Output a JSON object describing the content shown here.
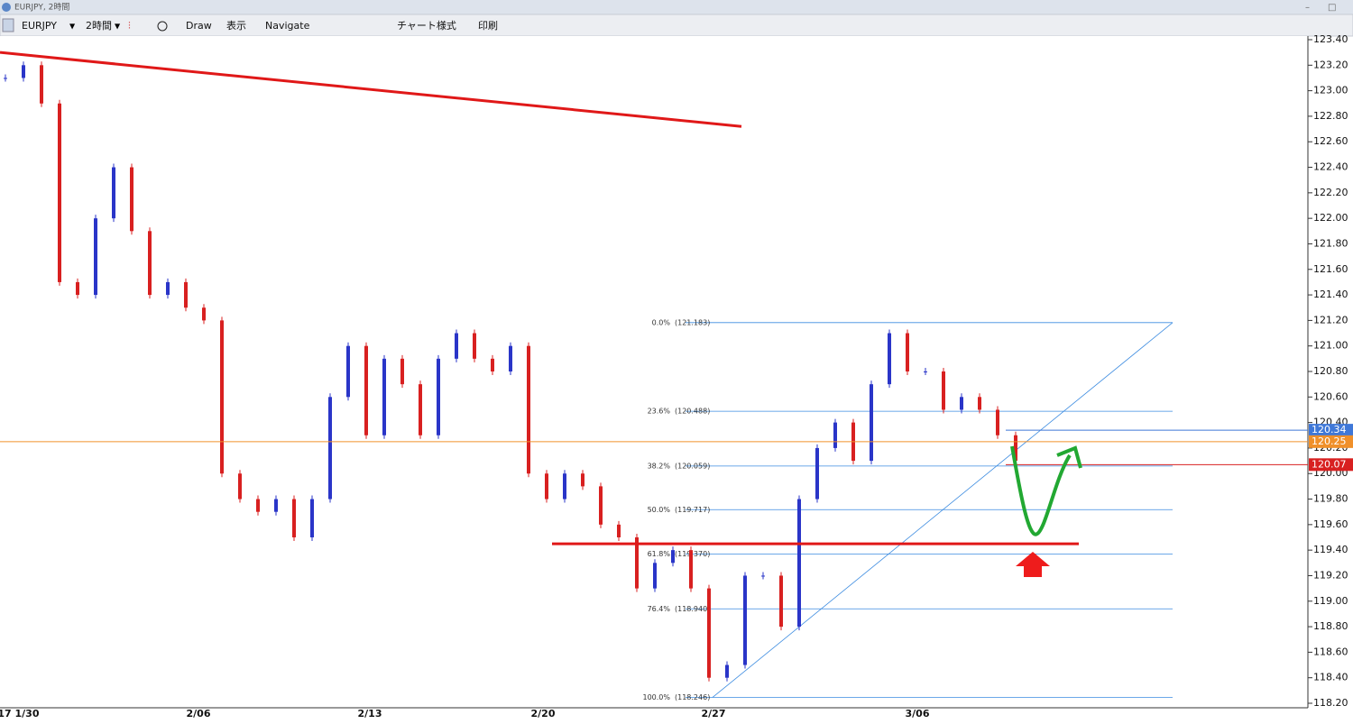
{
  "window": {
    "title": "EURJPY, 2時間"
  },
  "toolbar": {
    "symbol": "EURJPY",
    "timeframe": "2時間",
    "items": [
      "Draw",
      "表示",
      "Navigate",
      "チャート様式",
      "印刷"
    ]
  },
  "chart_data": {
    "type": "candlestick",
    "closes": [
      123.1,
      123.2,
      122.9,
      121.5,
      121.4,
      122.0,
      122.4,
      121.9,
      121.4,
      121.5,
      121.3,
      121.2,
      120.0,
      119.8,
      119.7,
      119.8,
      119.5,
      119.8,
      120.6,
      121.0,
      120.3,
      120.9,
      120.7,
      120.3,
      120.9,
      121.1,
      120.9,
      120.8,
      121.0,
      120.0,
      119.8,
      120.0,
      119.9,
      119.6,
      119.5,
      119.1,
      119.3,
      119.4,
      119.1,
      118.4,
      118.5,
      119.2,
      119.2,
      118.8,
      119.8,
      120.2,
      120.4,
      120.1,
      120.7,
      121.1,
      120.8,
      120.8,
      120.5,
      120.6,
      120.5,
      120.3,
      120.1
    ],
    "up_color": "#2a35c8",
    "down_color": "#d82020",
    "x_labels": [
      "17",
      "1/30",
      "2/06",
      "2/13",
      "2/20",
      "2/27",
      "3/06"
    ],
    "ylim": [
      118.2,
      123.4
    ],
    "yticks": [
      {
        "value": 123.4,
        "label": "123.40"
      },
      {
        "value": 123.2,
        "label": "123.20"
      },
      {
        "value": 123.0,
        "label": "123.00"
      },
      {
        "value": 122.8,
        "label": "122.80"
      },
      {
        "value": 122.6,
        "label": "122.60"
      },
      {
        "value": 122.4,
        "label": "122.40"
      },
      {
        "value": 122.2,
        "label": "122.20"
      },
      {
        "value": 122.0,
        "label": "122.00"
      },
      {
        "value": 121.8,
        "label": "121.80"
      },
      {
        "value": 121.6,
        "label": "121.60"
      },
      {
        "value": 121.4,
        "label": "121.40"
      },
      {
        "value": 121.2,
        "label": "121.20"
      },
      {
        "value": 121.0,
        "label": "121.00"
      },
      {
        "value": 120.8,
        "label": "120.80"
      },
      {
        "value": 120.6,
        "label": "120.60"
      },
      {
        "value": 120.4,
        "label": "120.40"
      },
      {
        "value": 120.2,
        "label": "120.20"
      },
      {
        "value": 120.0,
        "label": "120.00"
      },
      {
        "value": 119.8,
        "label": "119.80"
      },
      {
        "value": 119.6,
        "label": "119.60"
      },
      {
        "value": 119.4,
        "label": "119.40"
      },
      {
        "value": 119.2,
        "label": "119.20"
      },
      {
        "value": 119.0,
        "label": "119.00"
      },
      {
        "value": 118.8,
        "label": "118.80"
      },
      {
        "value": 118.6,
        "label": "118.60"
      },
      {
        "value": 118.4,
        "label": "118.40"
      },
      {
        "value": 118.2,
        "label": "118.20"
      }
    ],
    "fib_levels": [
      {
        "percent": "0.0%",
        "price": 121.183,
        "price_label": "(121.183)"
      },
      {
        "percent": "23.6%",
        "price": 120.488,
        "price_label": "(120.488)"
      },
      {
        "percent": "38.2%",
        "price": 120.059,
        "price_label": "(120.059)"
      },
      {
        "percent": "50.0%",
        "price": 119.717,
        "price_label": "(119.717)"
      },
      {
        "percent": "61.8%",
        "price": 119.37,
        "price_label": "(119.370)"
      },
      {
        "percent": "76.4%",
        "price": 118.94,
        "price_label": "(118.940)"
      },
      {
        "percent": "100.0%",
        "price": 118.246,
        "price_label": "(118.246)"
      }
    ],
    "price_tags": [
      {
        "value": 120.34,
        "color": "#3f78d8"
      },
      {
        "value": 120.25,
        "color": "#f0902a"
      },
      {
        "value": 120.07,
        "color": "#d82020"
      }
    ],
    "trend_line": {
      "start": 123.3,
      "end": 122.72,
      "color": "#e01818"
    },
    "support_line": {
      "value": 119.45,
      "color": "#e01818"
    }
  }
}
